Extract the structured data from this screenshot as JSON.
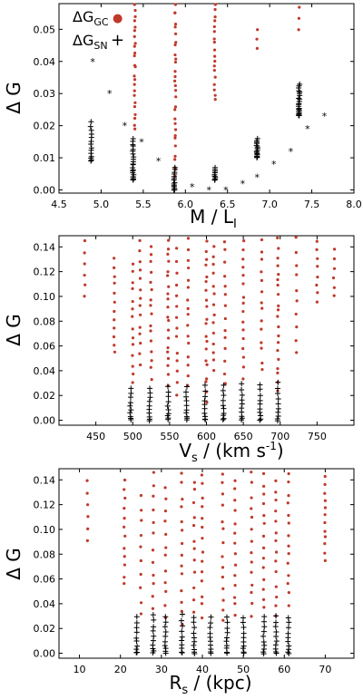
{
  "colors": {
    "gc": "#c0392b",
    "sn": "#000000"
  },
  "chart_data": [
    {
      "type": "scatter",
      "xlabel": "M / L_I",
      "xlabel_main": "M / L",
      "xlabel_sub": "I",
      "ylabel": "Δ G",
      "xlim": [
        4.5,
        8.0
      ],
      "ylim": [
        -0.001,
        0.058
      ],
      "xticks": [
        4.5,
        5.0,
        5.5,
        6.0,
        6.5,
        7.0,
        7.5,
        8.0
      ],
      "xtick_labels": [
        "4.5",
        "5.0",
        "5.5",
        "6.0",
        "6.5",
        "7.0",
        "7.5",
        "8.0"
      ],
      "yticks": [
        0.0,
        0.01,
        0.02,
        0.03,
        0.04,
        0.05
      ],
      "ytick_labels": [
        "0.00",
        "0.01",
        "0.02",
        "0.03",
        "0.04",
        "0.05"
      ],
      "legend": {
        "placement": "top-left",
        "gc_main": "ΔG",
        "gc_sub": "GC",
        "gc_marker": "●",
        "sn_main": "ΔG",
        "sn_sub": "SN",
        "sn_marker": "+"
      },
      "series": [
        {
          "key": "gc",
          "marker": "dot",
          "columns": [
            {
              "x": 5.4,
              "ymin": 0.019,
              "ymax": 0.058,
              "n": 24
            },
            {
              "x": 5.88,
              "ymin": 0.004,
              "ymax": 0.058,
              "n": 30
            },
            {
              "x": 6.35,
              "ymin": 0.028,
              "ymax": 0.058,
              "n": 18
            },
            {
              "x": 6.85,
              "ymin": 0.044,
              "ymax": 0.05,
              "n": 3
            },
            {
              "x": 7.35,
              "ymin": 0.05,
              "ymax": 0.057,
              "n": 3
            }
          ]
        },
        {
          "key": "sn",
          "marker": "plus",
          "columns": [
            {
              "x": 4.88,
              "ymin": 0.009,
              "ymax": 0.021,
              "n": 14
            },
            {
              "x": 5.38,
              "ymin": 0.003,
              "ymax": 0.016,
              "n": 22
            },
            {
              "x": 5.87,
              "ymin": 0.0,
              "ymax": 0.007,
              "n": 14
            },
            {
              "x": 6.35,
              "ymin": 0.003,
              "ymax": 0.007,
              "n": 10
            },
            {
              "x": 6.85,
              "ymin": 0.01,
              "ymax": 0.016,
              "n": 16
            },
            {
              "x": 7.35,
              "ymin": 0.023,
              "ymax": 0.033,
              "n": 22
            }
          ]
        },
        {
          "key": "sn_star",
          "marker": "star",
          "points": [
            [
              4.9,
              0.04
            ],
            [
              5.1,
              0.03
            ],
            [
              5.28,
              0.02
            ],
            [
              5.48,
              0.015
            ],
            [
              5.68,
              0.009
            ],
            [
              6.08,
              0.001
            ],
            [
              6.28,
              0.0
            ],
            [
              6.48,
              0.0
            ],
            [
              6.68,
              0.002
            ],
            [
              6.85,
              0.004
            ],
            [
              7.05,
              0.008
            ],
            [
              7.25,
              0.012
            ],
            [
              7.45,
              0.019
            ],
            [
              7.65,
              0.023
            ]
          ]
        }
      ]
    },
    {
      "type": "scatter",
      "xlabel": "V_s / (km s^-1)",
      "xlabel_main": "V",
      "xlabel_sub": "s",
      "xlabel_rest": " / (km s",
      "xlabel_sup": "-1",
      "xlabel_end": ")",
      "ylabel": "Δ G",
      "xlim": [
        400,
        800
      ],
      "ylim": [
        -0.004,
        0.149
      ],
      "xticks": [
        450,
        500,
        550,
        600,
        650,
        700,
        750
      ],
      "xtick_labels": [
        "450",
        "500",
        "550",
        "600",
        "650",
        "700",
        "750"
      ],
      "yticks": [
        0.0,
        0.02,
        0.04,
        0.06,
        0.08,
        0.1,
        0.12,
        0.14
      ],
      "ytick_labels": [
        "0.00",
        "0.02",
        "0.04",
        "0.06",
        "0.08",
        "0.10",
        "0.12",
        "0.14"
      ],
      "series": [
        {
          "key": "gc",
          "marker": "dot",
          "columns": [
            {
              "x": 435,
              "ymin": 0.1,
              "ymax": 0.145,
              "n": 6
            },
            {
              "x": 475,
              "ymin": 0.055,
              "ymax": 0.13,
              "n": 12
            },
            {
              "x": 500,
              "ymin": 0.03,
              "ymax": 0.128,
              "n": 14
            },
            {
              "x": 510,
              "ymin": 0.045,
              "ymax": 0.145,
              "n": 14
            },
            {
              "x": 525,
              "ymin": 0.035,
              "ymax": 0.142,
              "n": 16
            },
            {
              "x": 548,
              "ymin": 0.03,
              "ymax": 0.145,
              "n": 20
            },
            {
              "x": 560,
              "ymin": 0.02,
              "ymax": 0.138,
              "n": 14
            },
            {
              "x": 575,
              "ymin": 0.03,
              "ymax": 0.145,
              "n": 16
            },
            {
              "x": 600,
              "ymin": 0.015,
              "ymax": 0.145,
              "n": 20
            },
            {
              "x": 610,
              "ymin": 0.04,
              "ymax": 0.14,
              "n": 14
            },
            {
              "x": 625,
              "ymin": 0.03,
              "ymax": 0.145,
              "n": 14
            },
            {
              "x": 650,
              "ymin": 0.035,
              "ymax": 0.145,
              "n": 16
            },
            {
              "x": 675,
              "ymin": 0.04,
              "ymax": 0.145,
              "n": 14
            },
            {
              "x": 697,
              "ymin": 0.025,
              "ymax": 0.145,
              "n": 20
            },
            {
              "x": 722,
              "ymin": 0.055,
              "ymax": 0.147,
              "n": 10
            },
            {
              "x": 750,
              "ymin": 0.095,
              "ymax": 0.145,
              "n": 8
            },
            {
              "x": 773,
              "ymin": 0.1,
              "ymax": 0.138,
              "n": 6
            }
          ]
        },
        {
          "key": "sn",
          "marker": "plus",
          "columns": [
            {
              "x": 497,
              "ymin": 0.0,
              "ymax": 0.026,
              "n": 10
            },
            {
              "x": 523,
              "ymin": 0.0,
              "ymax": 0.026,
              "n": 10
            },
            {
              "x": 548,
              "ymin": 0.0,
              "ymax": 0.027,
              "n": 10
            },
            {
              "x": 573,
              "ymin": 0.0,
              "ymax": 0.027,
              "n": 10
            },
            {
              "x": 598,
              "ymin": 0.0,
              "ymax": 0.028,
              "n": 10
            },
            {
              "x": 623,
              "ymin": 0.0,
              "ymax": 0.028,
              "n": 10
            },
            {
              "x": 648,
              "ymin": 0.0,
              "ymax": 0.029,
              "n": 10
            },
            {
              "x": 673,
              "ymin": 0.0,
              "ymax": 0.029,
              "n": 10
            },
            {
              "x": 697,
              "ymin": 0.0,
              "ymax": 0.03,
              "n": 10
            }
          ]
        }
      ]
    },
    {
      "type": "scatter",
      "xlabel": "R_s / (kpc)",
      "xlabel_main": "R",
      "xlabel_sub": "s",
      "xlabel_rest": " / (kpc)",
      "ylabel": "Δ G",
      "xlim": [
        5,
        77
      ],
      "ylim": [
        -0.004,
        0.149
      ],
      "xticks": [
        10,
        20,
        30,
        40,
        50,
        60,
        70
      ],
      "xtick_labels": [
        "10",
        "20",
        "30",
        "40",
        "50",
        "60",
        "70"
      ],
      "yticks": [
        0.0,
        0.02,
        0.04,
        0.06,
        0.08,
        0.1,
        0.12,
        0.14
      ],
      "ytick_labels": [
        "0.00",
        "0.02",
        "0.04",
        "0.06",
        "0.08",
        "0.10",
        "0.12",
        "0.14"
      ],
      "series": [
        {
          "key": "gc",
          "marker": "dot",
          "columns": [
            {
              "x": 12,
              "ymin": 0.09,
              "ymax": 0.14,
              "n": 6
            },
            {
              "x": 21,
              "ymin": 0.055,
              "ymax": 0.14,
              "n": 12
            },
            {
              "x": 25,
              "ymin": 0.03,
              "ymax": 0.128,
              "n": 10
            },
            {
              "x": 28,
              "ymin": 0.035,
              "ymax": 0.145,
              "n": 12
            },
            {
              "x": 31,
              "ymin": 0.03,
              "ymax": 0.135,
              "n": 12
            },
            {
              "x": 35,
              "ymin": 0.025,
              "ymax": 0.145,
              "n": 14
            },
            {
              "x": 38,
              "ymin": 0.035,
              "ymax": 0.14,
              "n": 12
            },
            {
              "x": 40,
              "ymin": 0.03,
              "ymax": 0.145,
              "n": 14
            },
            {
              "x": 45,
              "ymin": 0.025,
              "ymax": 0.145,
              "n": 14
            },
            {
              "x": 48,
              "ymin": 0.03,
              "ymax": 0.14,
              "n": 14
            },
            {
              "x": 52,
              "ymin": 0.03,
              "ymax": 0.145,
              "n": 14
            },
            {
              "x": 55,
              "ymin": 0.035,
              "ymax": 0.145,
              "n": 14
            },
            {
              "x": 58,
              "ymin": 0.03,
              "ymax": 0.14,
              "n": 14
            },
            {
              "x": 61,
              "ymin": 0.04,
              "ymax": 0.145,
              "n": 14
            },
            {
              "x": 70,
              "ymin": 0.075,
              "ymax": 0.142,
              "n": 12
            }
          ]
        },
        {
          "key": "sn",
          "marker": "plus",
          "columns": [
            {
              "x": 24,
              "ymin": 0.0,
              "ymax": 0.029,
              "n": 10
            },
            {
              "x": 28,
              "ymin": 0.0,
              "ymax": 0.031,
              "n": 10
            },
            {
              "x": 31,
              "ymin": 0.0,
              "ymax": 0.03,
              "n": 10
            },
            {
              "x": 35,
              "ymin": 0.0,
              "ymax": 0.031,
              "n": 10
            },
            {
              "x": 38,
              "ymin": 0.0,
              "ymax": 0.029,
              "n": 10
            },
            {
              "x": 42,
              "ymin": 0.0,
              "ymax": 0.029,
              "n": 10
            },
            {
              "x": 46,
              "ymin": 0.0,
              "ymax": 0.029,
              "n": 10
            },
            {
              "x": 50,
              "ymin": 0.0,
              "ymax": 0.029,
              "n": 10
            },
            {
              "x": 55,
              "ymin": 0.0,
              "ymax": 0.03,
              "n": 10
            },
            {
              "x": 58,
              "ymin": 0.0,
              "ymax": 0.03,
              "n": 10
            },
            {
              "x": 61,
              "ymin": 0.0,
              "ymax": 0.029,
              "n": 10
            }
          ]
        }
      ]
    }
  ]
}
